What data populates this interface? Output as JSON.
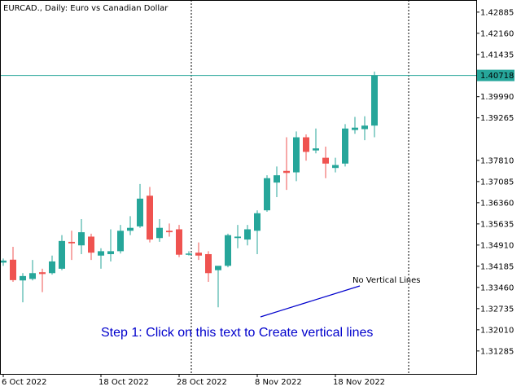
{
  "chart_data": {
    "type": "candlestick",
    "title": "EURCAD., Daily:  Euro vs Canadian Dollar",
    "colors": {
      "up": "#26a69a",
      "down": "#ef5350",
      "frame": "#000000",
      "current": "#26a69a",
      "vline": "#000000",
      "annotation": "#0000cc"
    },
    "ylim": [
      1.305,
      1.433
    ],
    "y_ticks": [
      1.42885,
      1.4216,
      1.41435,
      1.40718,
      1.3999,
      1.39265,
      1.3781,
      1.37085,
      1.3636,
      1.35635,
      1.3491,
      1.34185,
      1.3346,
      1.32735,
      1.3201,
      1.31285
    ],
    "y_tick_labels": [
      "1.42885",
      "1.42160",
      "1.41435",
      "1.40718",
      "1.39990",
      "1.39265",
      "1.37810",
      "1.37085",
      "1.36360",
      "1.35635",
      "1.34910",
      "1.34185",
      "1.33460",
      "1.32735",
      "1.32010",
      "1.31285"
    ],
    "current_price": 1.40718,
    "current_price_label": "1.40718",
    "x_labels": [
      {
        "index": 0,
        "text": "6 Oct 2022"
      },
      {
        "index": 10,
        "text": "18 Oct 2022"
      },
      {
        "index": 18,
        "text": "28 Oct 2022"
      },
      {
        "index": 26,
        "text": "8 Nov 2022"
      },
      {
        "index": 34,
        "text": "18 Nov 2022"
      }
    ],
    "vertical_lines": [
      19.25,
      41.5
    ],
    "candles": [
      {
        "o": 1.3431,
        "h": 1.3445,
        "l": 1.342,
        "c": 1.3438
      },
      {
        "o": 1.3441,
        "h": 1.3485,
        "l": 1.3365,
        "c": 1.3371
      },
      {
        "o": 1.337,
        "h": 1.3395,
        "l": 1.3295,
        "c": 1.3385
      },
      {
        "o": 1.3375,
        "h": 1.344,
        "l": 1.337,
        "c": 1.3395
      },
      {
        "o": 1.3398,
        "h": 1.341,
        "l": 1.333,
        "c": 1.3392
      },
      {
        "o": 1.3395,
        "h": 1.3455,
        "l": 1.339,
        "c": 1.3435
      },
      {
        "o": 1.341,
        "h": 1.3525,
        "l": 1.3405,
        "c": 1.3505
      },
      {
        "o": 1.3502,
        "h": 1.354,
        "l": 1.344,
        "c": 1.3497
      },
      {
        "o": 1.349,
        "h": 1.358,
        "l": 1.346,
        "c": 1.3535
      },
      {
        "o": 1.352,
        "h": 1.353,
        "l": 1.344,
        "c": 1.3465
      },
      {
        "o": 1.3455,
        "h": 1.348,
        "l": 1.341,
        "c": 1.347
      },
      {
        "o": 1.346,
        "h": 1.3545,
        "l": 1.3435,
        "c": 1.347
      },
      {
        "o": 1.347,
        "h": 1.356,
        "l": 1.3462,
        "c": 1.354
      },
      {
        "o": 1.354,
        "h": 1.359,
        "l": 1.3525,
        "c": 1.355
      },
      {
        "o": 1.3555,
        "h": 1.37,
        "l": 1.355,
        "c": 1.365
      },
      {
        "o": 1.366,
        "h": 1.369,
        "l": 1.35,
        "c": 1.351
      },
      {
        "o": 1.3515,
        "h": 1.358,
        "l": 1.3502,
        "c": 1.355
      },
      {
        "o": 1.354,
        "h": 1.3565,
        "l": 1.352,
        "c": 1.3535
      },
      {
        "o": 1.3545,
        "h": 1.356,
        "l": 1.345,
        "c": 1.3458
      },
      {
        "o": 1.3462,
        "h": 1.347,
        "l": 1.3455,
        "c": 1.3462
      },
      {
        "o": 1.3465,
        "h": 1.35,
        "l": 1.344,
        "c": 1.3455
      },
      {
        "o": 1.346,
        "h": 1.347,
        "l": 1.3365,
        "c": 1.3395
      },
      {
        "o": 1.3405,
        "h": 1.3415,
        "l": 1.3278,
        "c": 1.342
      },
      {
        "o": 1.342,
        "h": 1.353,
        "l": 1.3415,
        "c": 1.3525
      },
      {
        "o": 1.3515,
        "h": 1.356,
        "l": 1.348,
        "c": 1.352
      },
      {
        "o": 1.351,
        "h": 1.356,
        "l": 1.349,
        "c": 1.3545
      },
      {
        "o": 1.354,
        "h": 1.361,
        "l": 1.346,
        "c": 1.36
      },
      {
        "o": 1.361,
        "h": 1.373,
        "l": 1.3605,
        "c": 1.372
      },
      {
        "o": 1.3705,
        "h": 1.376,
        "l": 1.3655,
        "c": 1.373
      },
      {
        "o": 1.3745,
        "h": 1.386,
        "l": 1.368,
        "c": 1.3738
      },
      {
        "o": 1.374,
        "h": 1.388,
        "l": 1.371,
        "c": 1.386
      },
      {
        "o": 1.386,
        "h": 1.387,
        "l": 1.378,
        "c": 1.381
      },
      {
        "o": 1.3815,
        "h": 1.389,
        "l": 1.3805,
        "c": 1.3822
      },
      {
        "o": 1.379,
        "h": 1.3828,
        "l": 1.372,
        "c": 1.377
      },
      {
        "o": 1.3755,
        "h": 1.379,
        "l": 1.374,
        "c": 1.3765
      },
      {
        "o": 1.377,
        "h": 1.3905,
        "l": 1.376,
        "c": 1.389
      },
      {
        "o": 1.3885,
        "h": 1.393,
        "l": 1.3872,
        "c": 1.3893
      },
      {
        "o": 1.3888,
        "h": 1.3932,
        "l": 1.385,
        "c": 1.39
      },
      {
        "o": 1.39,
        "h": 1.4085,
        "l": 1.386,
        "c": 1.4072
      }
    ]
  },
  "annotations": {
    "step_text": "Step 1: Click on this text to Create vertical lines",
    "no_lines_label": "No Vertical Lines"
  }
}
